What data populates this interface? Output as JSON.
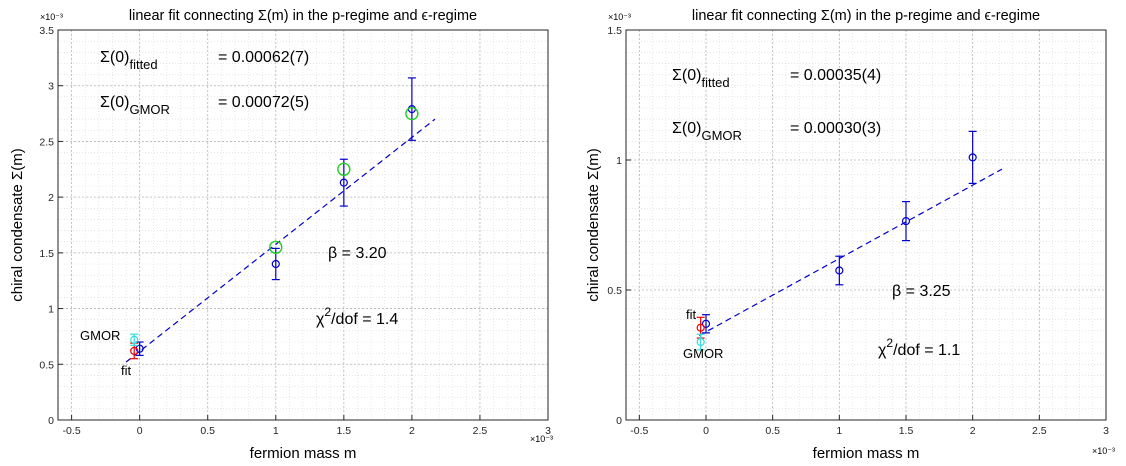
{
  "chart_data": [
    {
      "type": "scatter",
      "title": "linear fit connecting Σ(m) in the p-regime and ϵ-regime",
      "xlabel": "fermion mass   m",
      "ylabel": "chiral condensate   Σ(m)",
      "xlim": [
        -0.6,
        3.0
      ],
      "ylim": [
        0,
        3.5
      ],
      "x_exponent": "×10⁻³",
      "y_exponent": "×10⁻³",
      "xticks": [
        "-0.5",
        "0",
        "0.5",
        "1",
        "1.5",
        "2",
        "2.5",
        "3"
      ],
      "yticks": [
        "0",
        "0.5",
        "1",
        "1.5",
        "2",
        "2.5",
        "3",
        "3.5"
      ],
      "grid": true,
      "series": [
        {
          "marker": "blue-circle",
          "color": "#0000cc",
          "x": [
            0,
            1,
            1.5,
            2
          ],
          "y": [
            0.64,
            1.4,
            2.13,
            2.79
          ],
          "yerr": [
            0.06,
            0.14,
            0.21,
            0.28
          ]
        },
        {
          "marker": "green-circle",
          "color": "#22cc22",
          "x": [
            1,
            1.5,
            2
          ],
          "y": [
            1.55,
            2.25,
            2.75
          ]
        },
        {
          "marker": "red-circle",
          "color": "#ee0000",
          "x": [
            -0.04
          ],
          "y": [
            0.62
          ],
          "yerr": [
            0.07
          ]
        },
        {
          "marker": "cyan-circle",
          "color": "#33dddd",
          "x": [
            -0.04
          ],
          "y": [
            0.72
          ],
          "yerr": [
            0.05
          ]
        }
      ],
      "fit_line": {
        "x": [
          -0.1,
          2.17
        ],
        "y": [
          0.52,
          2.7
        ],
        "color": "#0000cc"
      },
      "annotations": {
        "sigma_fitted_label": "Σ(0)",
        "sigma_fitted_sub": "fitted",
        "sigma_fitted_value": "=  0.00062(7)",
        "sigma_gmor_label": "Σ(0)",
        "sigma_gmor_sub": "GMOR",
        "sigma_gmor_value": "=  0.00072(5)",
        "beta": "β = 3.20",
        "chi2": "χ",
        "chi2_sup": "2",
        "chi2_rest": "/dof = 1.4",
        "gmor_tag": "GMOR",
        "fit_tag": "fit"
      }
    },
    {
      "type": "scatter",
      "title": "linear fit connecting Σ(m) in the p-regime and ϵ-regime",
      "xlabel": "fermion mass   m",
      "ylabel": "chiral condensate   Σ(m)",
      "xlim": [
        -0.6,
        3.0
      ],
      "ylim": [
        0,
        1.5
      ],
      "x_exponent": "×10⁻³",
      "y_exponent": "×10⁻³",
      "xticks": [
        "-0.5",
        "0",
        "0.5",
        "1",
        "1.5",
        "2",
        "2.5",
        "3"
      ],
      "yticks": [
        "0",
        "0.5",
        "1",
        "1.5"
      ],
      "grid": true,
      "series": [
        {
          "marker": "blue-circle",
          "color": "#0000cc",
          "x": [
            0,
            1,
            1.5,
            2
          ],
          "y": [
            0.37,
            0.575,
            0.765,
            1.01
          ],
          "yerr": [
            0.035,
            0.055,
            0.075,
            0.1
          ]
        },
        {
          "marker": "red-circle",
          "color": "#ee0000",
          "x": [
            -0.04
          ],
          "y": [
            0.355
          ],
          "yerr": [
            0.04
          ]
        },
        {
          "marker": "cyan-circle",
          "color": "#33dddd",
          "x": [
            -0.04
          ],
          "y": [
            0.3
          ],
          "yerr": [
            0.03
          ]
        }
      ],
      "fit_line": {
        "x": [
          -0.05,
          2.22
        ],
        "y": [
          0.325,
          0.965
        ],
        "color": "#0000cc"
      },
      "annotations": {
        "sigma_fitted_label": "Σ(0)",
        "sigma_fitted_sub": "fitted",
        "sigma_fitted_value": "=  0.00035(4)",
        "sigma_gmor_label": "Σ(0)",
        "sigma_gmor_sub": "GMOR",
        "sigma_gmor_value": "=  0.00030(3)",
        "beta": "β = 3.25",
        "chi2": "χ",
        "chi2_sup": "2",
        "chi2_rest": "/dof = 1.1",
        "gmor_tag": "GMOR",
        "fit_tag": "fit"
      }
    }
  ]
}
